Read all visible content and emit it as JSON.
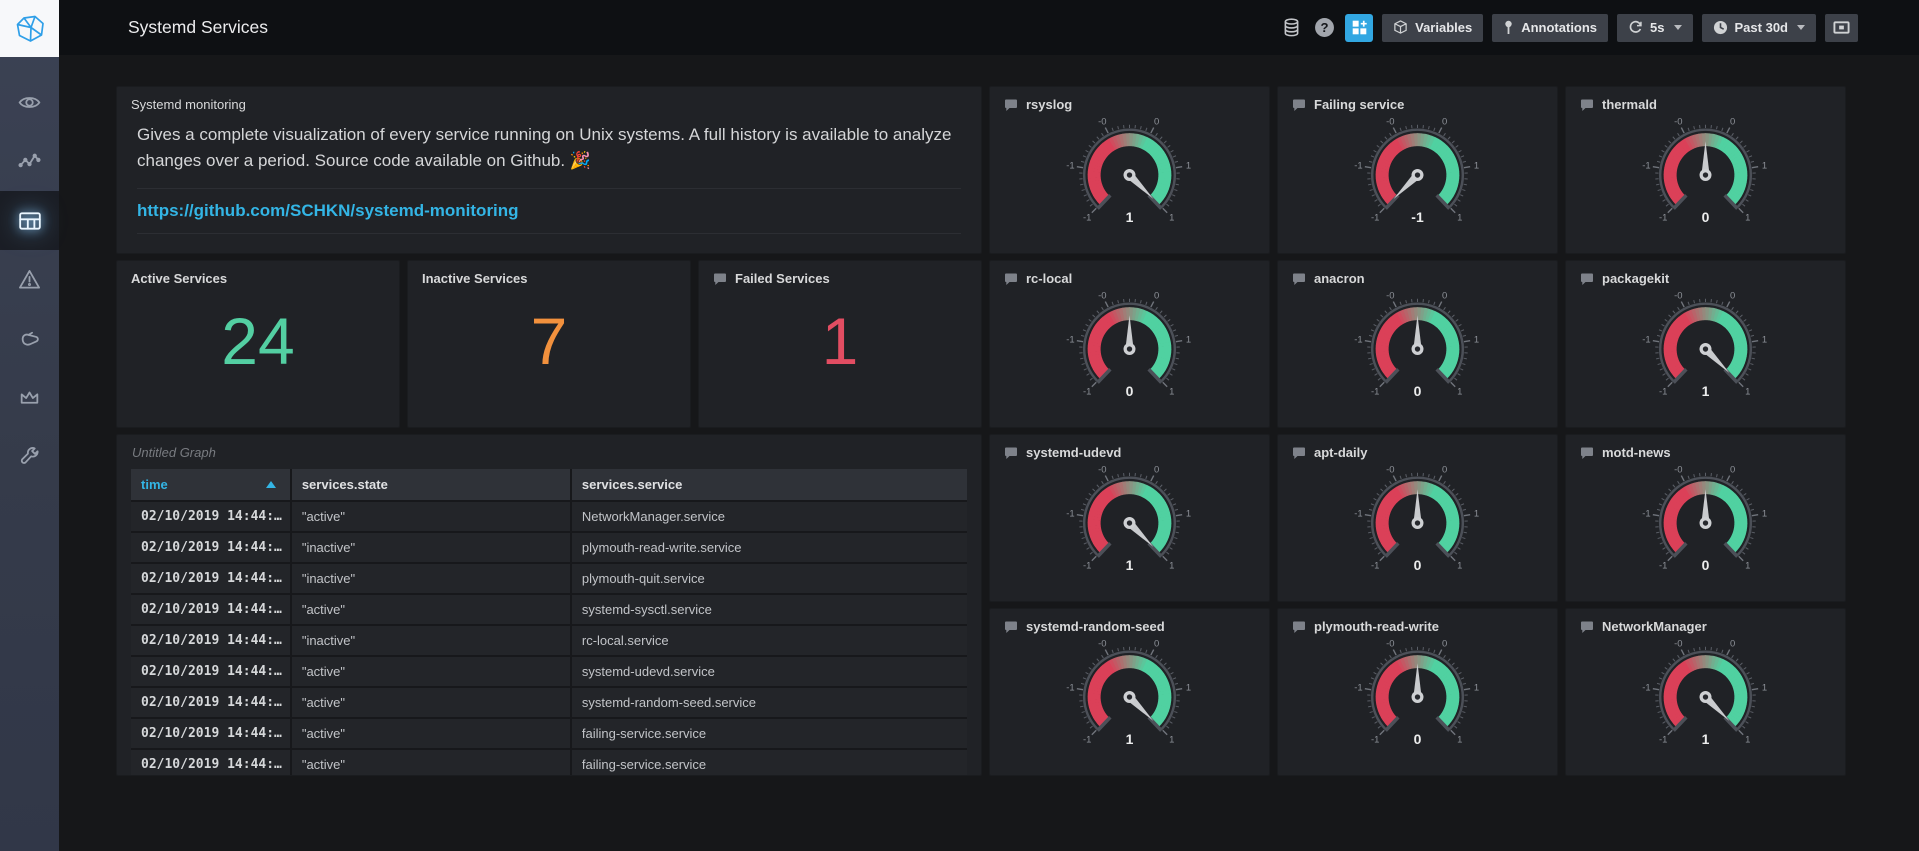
{
  "navbar": {
    "title": "Systemd Services",
    "variables_label": "Variables",
    "annotations_label": "Annotations",
    "refresh_interval": "5s",
    "time_range": "Past 30d"
  },
  "colors": {
    "accent_blue": "#33b5e5",
    "stat_green": "#53cfa2",
    "stat_orange": "#f2913d",
    "stat_red": "#e24d62",
    "gauge_red": "#db4058",
    "gauge_green": "#50d1a1"
  },
  "text_panel": {
    "title": "Systemd monitoring",
    "body": "Gives a complete visualization of every service running on Unix systems. A full history is available to analyze changes over a period. Source code available on Github. 🎉",
    "link": "https://github.com/SCHKN/systemd-monitoring"
  },
  "stats": [
    {
      "title": "Active Services",
      "value": "24",
      "color": "#53cfa2",
      "has_icon": false
    },
    {
      "title": "Inactive Services",
      "value": "7",
      "color": "#f2913d",
      "has_icon": false
    },
    {
      "title": "Failed Services",
      "value": "1",
      "color": "#e24d62",
      "has_icon": true
    }
  ],
  "table_panel": {
    "title": "Untitled Graph",
    "columns": [
      "time",
      "services.state",
      "services.service"
    ],
    "sorted_column": "time",
    "rows": [
      [
        "02/10/2019 14:44:…",
        "\"active\"",
        "NetworkManager.service"
      ],
      [
        "02/10/2019 14:44:…",
        "\"inactive\"",
        "plymouth-read-write.service"
      ],
      [
        "02/10/2019 14:44:…",
        "\"inactive\"",
        "plymouth-quit.service"
      ],
      [
        "02/10/2019 14:44:…",
        "\"active\"",
        "systemd-sysctl.service"
      ],
      [
        "02/10/2019 14:44:…",
        "\"inactive\"",
        "rc-local.service"
      ],
      [
        "02/10/2019 14:44:…",
        "\"active\"",
        "systemd-udevd.service"
      ],
      [
        "02/10/2019 14:44:…",
        "\"active\"",
        "systemd-random-seed.service"
      ],
      [
        "02/10/2019 14:44:…",
        "\"active\"",
        "failing-service.service"
      ],
      [
        "02/10/2019 14:44:…",
        "\"active\"",
        "failing-service.service"
      ]
    ]
  },
  "gauges": {
    "min": -1,
    "max": 1,
    "tick_labels": [
      "-1",
      "-1",
      "-0",
      "0",
      "1",
      "1"
    ],
    "panels": [
      {
        "title": "rsyslog",
        "value": 1
      },
      {
        "title": "Failing service",
        "value": -1
      },
      {
        "title": "thermald",
        "value": 0
      },
      {
        "title": "rc-local",
        "value": 0
      },
      {
        "title": "anacron",
        "value": 0
      },
      {
        "title": "packagekit",
        "value": 1
      },
      {
        "title": "systemd-udevd",
        "value": 1
      },
      {
        "title": "apt-daily",
        "value": 0
      },
      {
        "title": "motd-news",
        "value": 0
      },
      {
        "title": "systemd-random-seed",
        "value": 1
      },
      {
        "title": "plymouth-read-write",
        "value": 0
      },
      {
        "title": "NetworkManager",
        "value": 1
      }
    ]
  }
}
